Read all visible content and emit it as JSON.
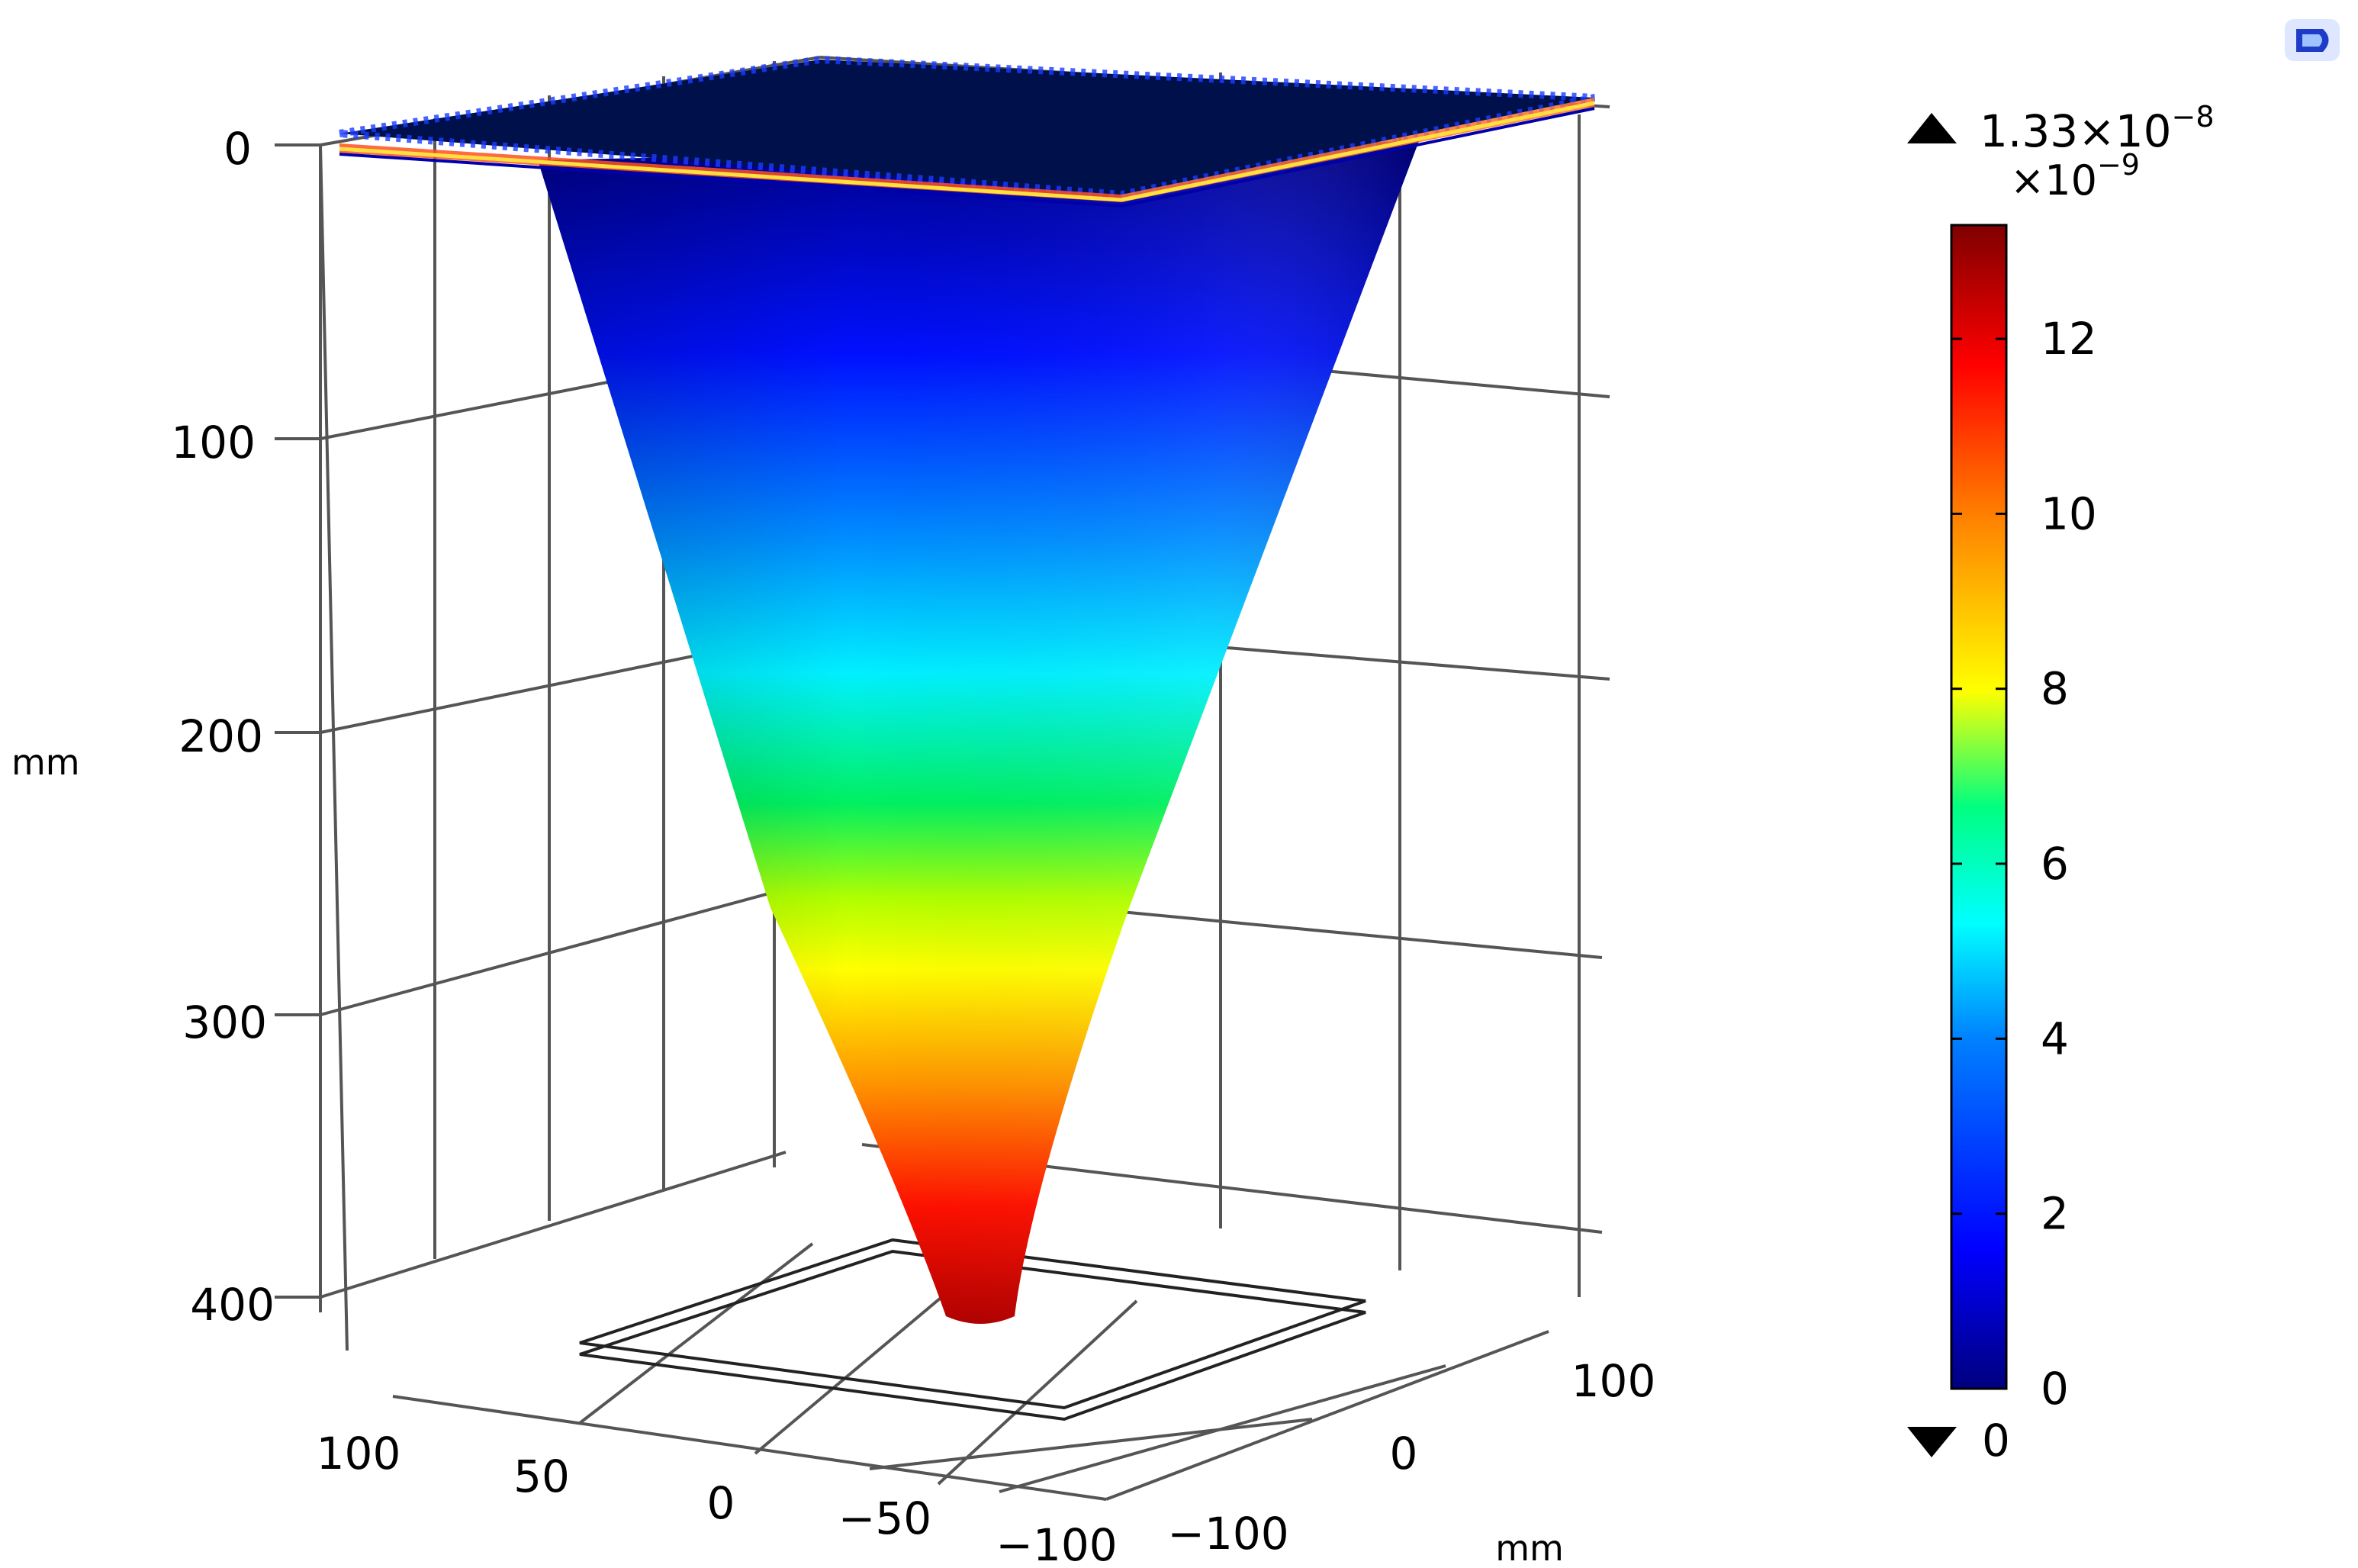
{
  "chart_data": {
    "type": "3d-surface",
    "z_axis": {
      "unit": "mm",
      "ticks": [
        "0",
        "100",
        "200",
        "300",
        "400"
      ],
      "range": [
        0,
        400
      ]
    },
    "x_axis": {
      "unit": "",
      "ticks": [
        "100",
        "50",
        "0",
        "−50",
        "−100"
      ],
      "range": [
        -100,
        100
      ]
    },
    "y_axis": {
      "unit": "mm",
      "ticks": [
        "100",
        "0",
        "−100"
      ],
      "range": [
        -100,
        100
      ]
    },
    "colorbar": {
      "colormap": "rainbow",
      "multiplier_base": "×10",
      "multiplier_exp": "−9",
      "max_base": "1.33×10",
      "max_exp": "−8",
      "min_value": "0",
      "range": [
        0,
        13.3
      ],
      "ticks": [
        "0",
        "2",
        "4",
        "6",
        "8",
        "10",
        "12"
      ],
      "colors": [
        "#00007f",
        "#0000ff",
        "#0080ff",
        "#00ffff",
        "#00ff80",
        "#ffff00",
        "#ff8000",
        "#ff0000",
        "#7f0000"
      ]
    },
    "surface": {
      "shape": "inverted cone",
      "top_value": 0,
      "bottom_value": 13.3
    }
  },
  "logo": {
    "icon": "app-logo-icon"
  }
}
